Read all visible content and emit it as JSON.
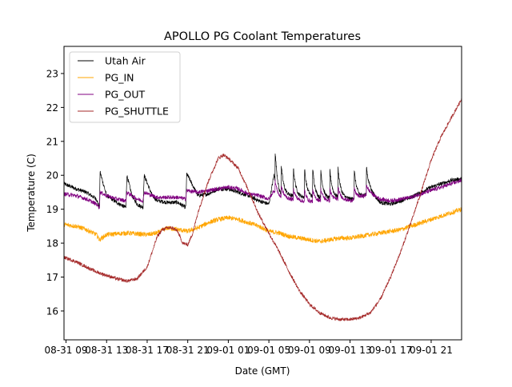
{
  "chart_data": {
    "type": "line",
    "title": "APOLLO PG Coolant Temperatures",
    "xlabel": "Date (GMT)",
    "ylabel": "Temperature (C)",
    "x_unit": "hours since 08-31 09:00 GMT",
    "xlim": [
      -0.2,
      39.0
    ],
    "ylim": [
      15.15,
      23.8
    ],
    "grid": false,
    "legend_position": "top-left",
    "x_ticks": [
      {
        "value": 0,
        "label": "08-31 09"
      },
      {
        "value": 4,
        "label": "08-31 13"
      },
      {
        "value": 8,
        "label": "08-31 17"
      },
      {
        "value": 12,
        "label": "08-31 21"
      },
      {
        "value": 16,
        "label": "09-01 01"
      },
      {
        "value": 20,
        "label": "09-01 05"
      },
      {
        "value": 24,
        "label": "09-01 09"
      },
      {
        "value": 28,
        "label": "09-01 13"
      },
      {
        "value": 32,
        "label": "09-01 17"
      },
      {
        "value": 36,
        "label": "09-01 21"
      }
    ],
    "y_ticks": [
      16,
      17,
      18,
      19,
      20,
      21,
      22,
      23
    ],
    "series": [
      {
        "name": "Utah Air",
        "color": "#000000",
        "noise": 0.06,
        "x": [
          -0.2,
          1,
          2,
          3,
          3.3,
          3.35,
          4,
          5,
          5.9,
          6,
          6.5,
          7,
          7.6,
          7.7,
          8.5,
          9,
          10,
          11,
          11.8,
          11.9,
          13,
          14,
          15,
          16,
          17,
          18,
          19,
          20,
          20.5,
          21,
          22,
          23,
          24,
          25,
          26,
          27,
          28,
          29,
          30,
          31,
          32,
          33,
          34,
          35,
          36,
          37,
          38,
          39
        ],
        "y": [
          19.75,
          19.6,
          19.5,
          19.3,
          19.05,
          20.1,
          19.4,
          19.2,
          19.05,
          20.0,
          19.4,
          19.15,
          19.05,
          20.0,
          19.4,
          19.25,
          19.2,
          19.2,
          19.05,
          20.05,
          19.4,
          19.45,
          19.6,
          19.6,
          19.5,
          19.4,
          19.25,
          19.15,
          20.0,
          19.4,
          19.4,
          19.35,
          19.35,
          19.3,
          19.3,
          19.35,
          19.3,
          19.35,
          19.5,
          19.2,
          19.15,
          19.25,
          19.35,
          19.5,
          19.65,
          19.75,
          19.85,
          19.9
        ],
        "spikes": [
          20.6,
          21.2,
          22.4,
          23.5,
          24.3,
          25.1,
          26.0,
          26.8,
          28.4,
          29.6
        ]
      },
      {
        "name": "PG_IN",
        "color": "#ffa500",
        "noise": 0.07,
        "x": [
          -0.2,
          1,
          2,
          3,
          3.3,
          4,
          6,
          8,
          9,
          10,
          11,
          12,
          13,
          14,
          15,
          16,
          17,
          18,
          19,
          20,
          21,
          22,
          23,
          24,
          25,
          26,
          27,
          28,
          29,
          30,
          31,
          32,
          33,
          34,
          35,
          36,
          37,
          38,
          39
        ],
        "y": [
          18.55,
          18.5,
          18.4,
          18.25,
          18.1,
          18.25,
          18.3,
          18.25,
          18.3,
          18.45,
          18.4,
          18.35,
          18.45,
          18.6,
          18.7,
          18.75,
          18.7,
          18.6,
          18.5,
          18.35,
          18.3,
          18.2,
          18.15,
          18.1,
          18.05,
          18.1,
          18.15,
          18.15,
          18.2,
          18.25,
          18.3,
          18.35,
          18.4,
          18.5,
          18.6,
          18.7,
          18.8,
          18.9,
          19.0
        ]
      },
      {
        "name": "PG_OUT",
        "color": "#800080",
        "noise": 0.06,
        "x": [
          -0.2,
          1,
          2,
          3,
          3.3,
          3.35,
          4,
          5,
          5.9,
          6,
          7,
          7.6,
          7.7,
          8.5,
          9,
          10,
          11,
          11.8,
          11.9,
          13,
          14,
          15,
          16,
          17,
          18,
          19,
          20,
          20.5,
          21,
          22,
          23,
          24,
          25,
          26,
          27,
          28,
          29,
          30,
          31,
          32,
          33,
          34,
          35,
          36,
          37,
          38,
          39
        ],
        "y": [
          19.45,
          19.4,
          19.3,
          19.15,
          19.05,
          19.5,
          19.4,
          19.3,
          19.25,
          19.5,
          19.3,
          19.25,
          19.5,
          19.4,
          19.35,
          19.35,
          19.35,
          19.3,
          19.55,
          19.5,
          19.55,
          19.6,
          19.65,
          19.6,
          19.45,
          19.4,
          19.3,
          19.55,
          19.35,
          19.3,
          19.25,
          19.2,
          19.25,
          19.25,
          19.3,
          19.25,
          19.35,
          19.45,
          19.3,
          19.25,
          19.3,
          19.35,
          19.45,
          19.55,
          19.65,
          19.75,
          19.85
        ],
        "spikes": [
          20.6,
          21.2,
          22.4,
          23.5,
          24.3,
          25.1,
          26.0,
          26.8,
          28.4,
          29.6
        ]
      },
      {
        "name": "PG_SHUTTLE",
        "color": "#a52a2a",
        "noise": 0.05,
        "x": [
          -0.2,
          1,
          2,
          3,
          4,
          5,
          6,
          7,
          8,
          8.5,
          9,
          9.5,
          10,
          10.5,
          11,
          11.5,
          12,
          12.5,
          13,
          14,
          15,
          15.5,
          16,
          17,
          18,
          19,
          20,
          21,
          22,
          23,
          24,
          25,
          26,
          27,
          28,
          29,
          30,
          31,
          32,
          33,
          34,
          35,
          36,
          37,
          38,
          39
        ],
        "y": [
          17.58,
          17.45,
          17.3,
          17.15,
          17.05,
          16.95,
          16.88,
          16.95,
          17.3,
          17.75,
          18.2,
          18.4,
          18.45,
          18.45,
          18.35,
          18.0,
          17.95,
          18.3,
          18.9,
          19.8,
          20.5,
          20.6,
          20.5,
          20.2,
          19.55,
          18.85,
          18.3,
          17.75,
          17.15,
          16.6,
          16.2,
          15.95,
          15.8,
          15.75,
          15.75,
          15.8,
          15.95,
          16.35,
          17.0,
          17.75,
          18.6,
          19.5,
          20.45,
          21.15,
          21.7,
          22.25
        ]
      }
    ]
  }
}
